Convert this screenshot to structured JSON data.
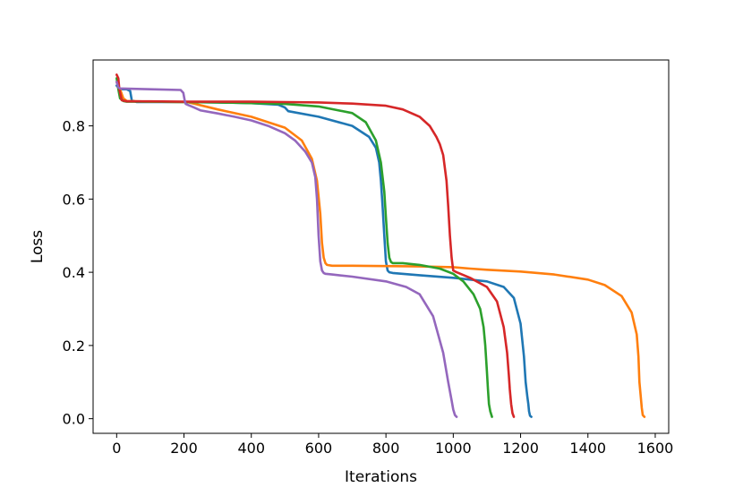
{
  "chart_data": {
    "type": "line",
    "title": "",
    "xlabel": "Iterations",
    "ylabel": "Loss",
    "xlim": [
      -70,
      1640
    ],
    "ylim": [
      -0.04,
      0.98
    ],
    "xticks": [
      0,
      200,
      400,
      600,
      800,
      1000,
      1200,
      1400,
      1600
    ],
    "xtick_labels": [
      "0",
      "200",
      "400",
      "600",
      "800",
      "1000",
      "1200",
      "1400",
      "1600"
    ],
    "yticks": [
      0.0,
      0.2,
      0.4,
      0.6,
      0.8
    ],
    "ytick_labels": [
      "0.0",
      "0.2",
      "0.4",
      "0.6",
      "0.8"
    ],
    "grid": false,
    "series": [
      {
        "color": "#1f77b4",
        "x": [
          0,
          5,
          10,
          20,
          30,
          40,
          45,
          60,
          100,
          200,
          300,
          400,
          480,
          500,
          510,
          600,
          700,
          750,
          770,
          780,
          785,
          790,
          795,
          800,
          805,
          810,
          820,
          900,
          1000,
          1100,
          1150,
          1180,
          1200,
          1210,
          1215,
          1220,
          1223,
          1225,
          1228,
          1232
        ],
        "y": [
          0.91,
          0.905,
          0.9,
          0.9,
          0.9,
          0.895,
          0.87,
          0.865,
          0.865,
          0.865,
          0.864,
          0.862,
          0.858,
          0.85,
          0.84,
          0.825,
          0.8,
          0.77,
          0.74,
          0.7,
          0.65,
          0.58,
          0.5,
          0.43,
          0.405,
          0.4,
          0.398,
          0.392,
          0.385,
          0.375,
          0.36,
          0.33,
          0.26,
          0.17,
          0.1,
          0.06,
          0.04,
          0.02,
          0.008,
          0.005
        ]
      },
      {
        "color": "#ff7f0e",
        "x": [
          0,
          5,
          10,
          20,
          30,
          100,
          200,
          210,
          300,
          400,
          500,
          550,
          580,
          595,
          605,
          610,
          615,
          620,
          625,
          640,
          700,
          800,
          900,
          1000,
          1050,
          1100,
          1200,
          1300,
          1400,
          1450,
          1500,
          1530,
          1545,
          1550,
          1553,
          1557,
          1560,
          1563,
          1568
        ],
        "y": [
          0.92,
          0.91,
          0.9,
          0.875,
          0.868,
          0.866,
          0.865,
          0.865,
          0.845,
          0.825,
          0.795,
          0.76,
          0.71,
          0.65,
          0.56,
          0.48,
          0.44,
          0.425,
          0.42,
          0.418,
          0.418,
          0.417,
          0.416,
          0.414,
          0.41,
          0.407,
          0.402,
          0.394,
          0.38,
          0.365,
          0.335,
          0.29,
          0.23,
          0.17,
          0.1,
          0.06,
          0.03,
          0.01,
          0.005
        ]
      },
      {
        "color": "#2ca02c",
        "x": [
          0,
          5,
          10,
          20,
          30,
          100,
          200,
          300,
          400,
          500,
          600,
          700,
          740,
          770,
          785,
          795,
          800,
          805,
          810,
          815,
          820,
          850,
          900,
          960,
          1000,
          1030,
          1060,
          1080,
          1090,
          1095,
          1100,
          1103,
          1106,
          1110,
          1115
        ],
        "y": [
          0.93,
          0.9,
          0.875,
          0.868,
          0.866,
          0.866,
          0.865,
          0.864,
          0.862,
          0.86,
          0.853,
          0.835,
          0.81,
          0.76,
          0.7,
          0.62,
          0.55,
          0.48,
          0.44,
          0.428,
          0.425,
          0.425,
          0.42,
          0.41,
          0.396,
          0.375,
          0.34,
          0.3,
          0.25,
          0.2,
          0.13,
          0.08,
          0.04,
          0.02,
          0.005
        ]
      },
      {
        "color": "#d62728",
        "x": [
          0,
          5,
          8,
          15,
          30,
          100,
          200,
          300,
          400,
          500,
          600,
          700,
          800,
          850,
          900,
          930,
          950,
          960,
          970,
          980,
          985,
          990,
          995,
          1000,
          1010,
          1050,
          1100,
          1130,
          1150,
          1160,
          1165,
          1168,
          1172,
          1176,
          1180
        ],
        "y": [
          0.94,
          0.93,
          0.9,
          0.87,
          0.867,
          0.867,
          0.866,
          0.866,
          0.866,
          0.865,
          0.864,
          0.861,
          0.855,
          0.845,
          0.825,
          0.8,
          0.77,
          0.75,
          0.72,
          0.65,
          0.58,
          0.5,
          0.44,
          0.405,
          0.4,
          0.385,
          0.36,
          0.32,
          0.25,
          0.18,
          0.12,
          0.08,
          0.04,
          0.015,
          0.005
        ]
      },
      {
        "color": "#9467bd",
        "x": [
          0,
          5,
          10,
          20,
          100,
          190,
          198,
          202,
          205,
          210,
          230,
          250,
          300,
          350,
          400,
          450,
          500,
          530,
          560,
          580,
          590,
          595,
          600,
          605,
          610,
          615,
          620,
          640,
          700,
          800,
          860,
          900,
          940,
          970,
          985,
          995,
          1000,
          1005,
          1010
        ],
        "y": [
          0.92,
          0.905,
          0.902,
          0.902,
          0.9,
          0.898,
          0.89,
          0.87,
          0.86,
          0.858,
          0.85,
          0.842,
          0.834,
          0.825,
          0.815,
          0.8,
          0.78,
          0.76,
          0.73,
          0.7,
          0.66,
          0.6,
          0.5,
          0.43,
          0.405,
          0.398,
          0.396,
          0.394,
          0.388,
          0.375,
          0.36,
          0.34,
          0.28,
          0.18,
          0.1,
          0.05,
          0.025,
          0.01,
          0.005
        ]
      }
    ]
  }
}
